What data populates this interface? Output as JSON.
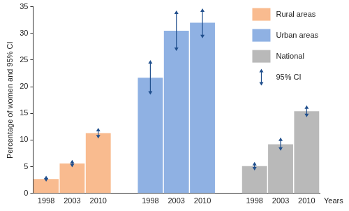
{
  "chart_data": {
    "type": "bar",
    "y_label": "Percentage of women and 95% CI",
    "x_label": "Years",
    "categories": [
      "1998",
      "2003",
      "2010",
      null,
      "1998",
      "2003",
      "2010",
      null,
      "1998",
      "2003",
      "2010"
    ],
    "series": [
      {
        "name": "Rural areas",
        "color": "#f9bb8f",
        "values": [
          2.7,
          5.6,
          11.3,
          null,
          null,
          null,
          null,
          null,
          null,
          null,
          null
        ],
        "ci_low": [
          2.2,
          4.9,
          10.3,
          null,
          null,
          null,
          null,
          null,
          null,
          null,
          null
        ],
        "ci_high": [
          3.3,
          6.3,
          12.3,
          null,
          null,
          null,
          null,
          null,
          null,
          null,
          null
        ]
      },
      {
        "name": "Urban areas",
        "color": "#8fb1e3",
        "values": [
          null,
          null,
          null,
          null,
          21.7,
          30.5,
          32.0,
          null,
          null,
          null,
          null
        ],
        "ci_low": [
          null,
          null,
          null,
          null,
          18.5,
          26.7,
          29.1,
          null,
          null,
          null,
          null
        ],
        "ci_high": [
          null,
          null,
          null,
          null,
          25.0,
          34.3,
          34.7,
          null,
          null,
          null,
          null
        ]
      },
      {
        "name": "National",
        "color": "#b9b9b9",
        "values": [
          null,
          null,
          null,
          null,
          null,
          null,
          null,
          null,
          5.1,
          9.2,
          15.4
        ],
        "ci_low": [
          null,
          null,
          null,
          null,
          null,
          null,
          null,
          null,
          4.3,
          8.0,
          14.3
        ],
        "ci_high": [
          null,
          null,
          null,
          null,
          null,
          null,
          null,
          null,
          5.9,
          10.5,
          16.5
        ]
      }
    ],
    "ci_label": "95% CI",
    "ylim": [
      0,
      35
    ],
    "yticks": [
      0,
      5,
      10,
      15,
      20,
      25,
      30,
      35
    ],
    "grid": false,
    "legend": "upper right"
  }
}
